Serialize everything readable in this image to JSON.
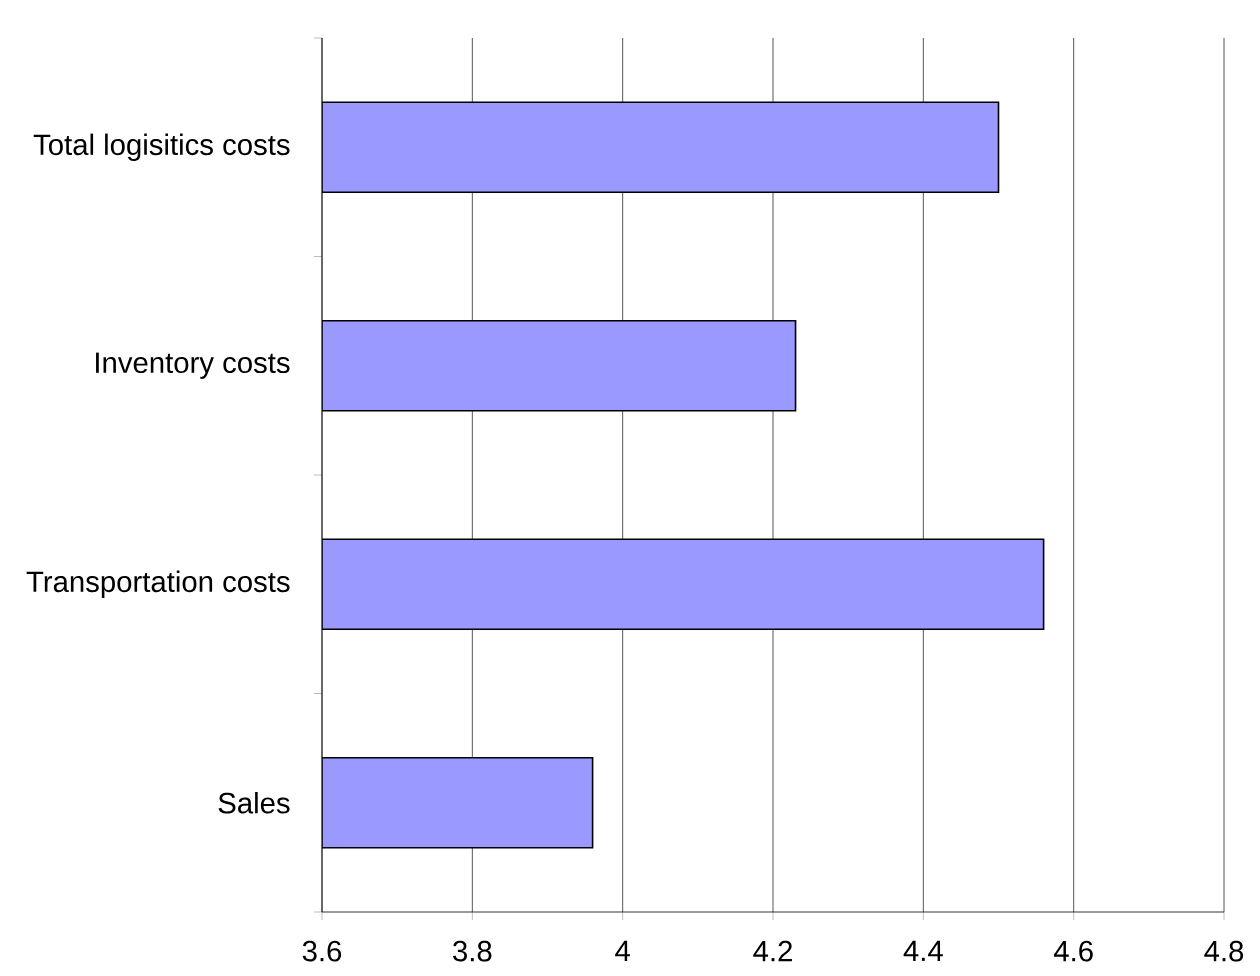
{
  "chart_data": {
    "type": "bar",
    "orientation": "horizontal",
    "categories": [
      "Total logisitics costs",
      "Inventory costs",
      "Transportation costs",
      "Sales"
    ],
    "values": [
      4.5,
      4.23,
      4.56,
      3.96
    ],
    "color": "#9999ff",
    "xlim": [
      3.6,
      4.8
    ],
    "xticks": [
      3.6,
      3.8,
      4,
      4.2,
      4.4,
      4.6,
      4.8
    ],
    "grid": "x"
  }
}
